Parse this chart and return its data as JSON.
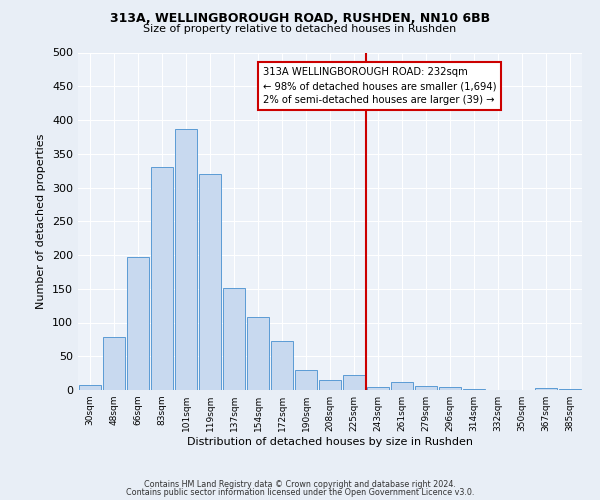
{
  "title1": "313A, WELLINGBOROUGH ROAD, RUSHDEN, NN10 6BB",
  "title2": "Size of property relative to detached houses in Rushden",
  "xlabel": "Distribution of detached houses by size in Rushden",
  "ylabel": "Number of detached properties",
  "bin_labels": [
    "30sqm",
    "48sqm",
    "66sqm",
    "83sqm",
    "101sqm",
    "119sqm",
    "137sqm",
    "154sqm",
    "172sqm",
    "190sqm",
    "208sqm",
    "225sqm",
    "243sqm",
    "261sqm",
    "279sqm",
    "296sqm",
    "314sqm",
    "332sqm",
    "350sqm",
    "367sqm",
    "385sqm"
  ],
  "bar_heights": [
    8,
    78,
    197,
    330,
    387,
    320,
    151,
    108,
    73,
    30,
    15,
    22,
    5,
    12,
    6,
    4,
    1,
    0,
    0,
    3,
    1
  ],
  "bar_color": "#c8d9ef",
  "bar_edge_color": "#5b9bd5",
  "vline_color": "#cc0000",
  "vline_label_idx": 12,
  "ylim": [
    0,
    500
  ],
  "yticks": [
    0,
    50,
    100,
    150,
    200,
    250,
    300,
    350,
    400,
    450,
    500
  ],
  "annotation_title": "313A WELLINGBOROUGH ROAD: 232sqm",
  "annotation_line1": "← 98% of detached houses are smaller (1,694)",
  "annotation_line2": "2% of semi-detached houses are larger (39) →",
  "annotation_box_color": "#cc0000",
  "footer1": "Contains HM Land Registry data © Crown copyright and database right 2024.",
  "footer2": "Contains public sector information licensed under the Open Government Licence v3.0.",
  "bg_color": "#e8eef6",
  "plot_bg_color": "#edf2f9"
}
